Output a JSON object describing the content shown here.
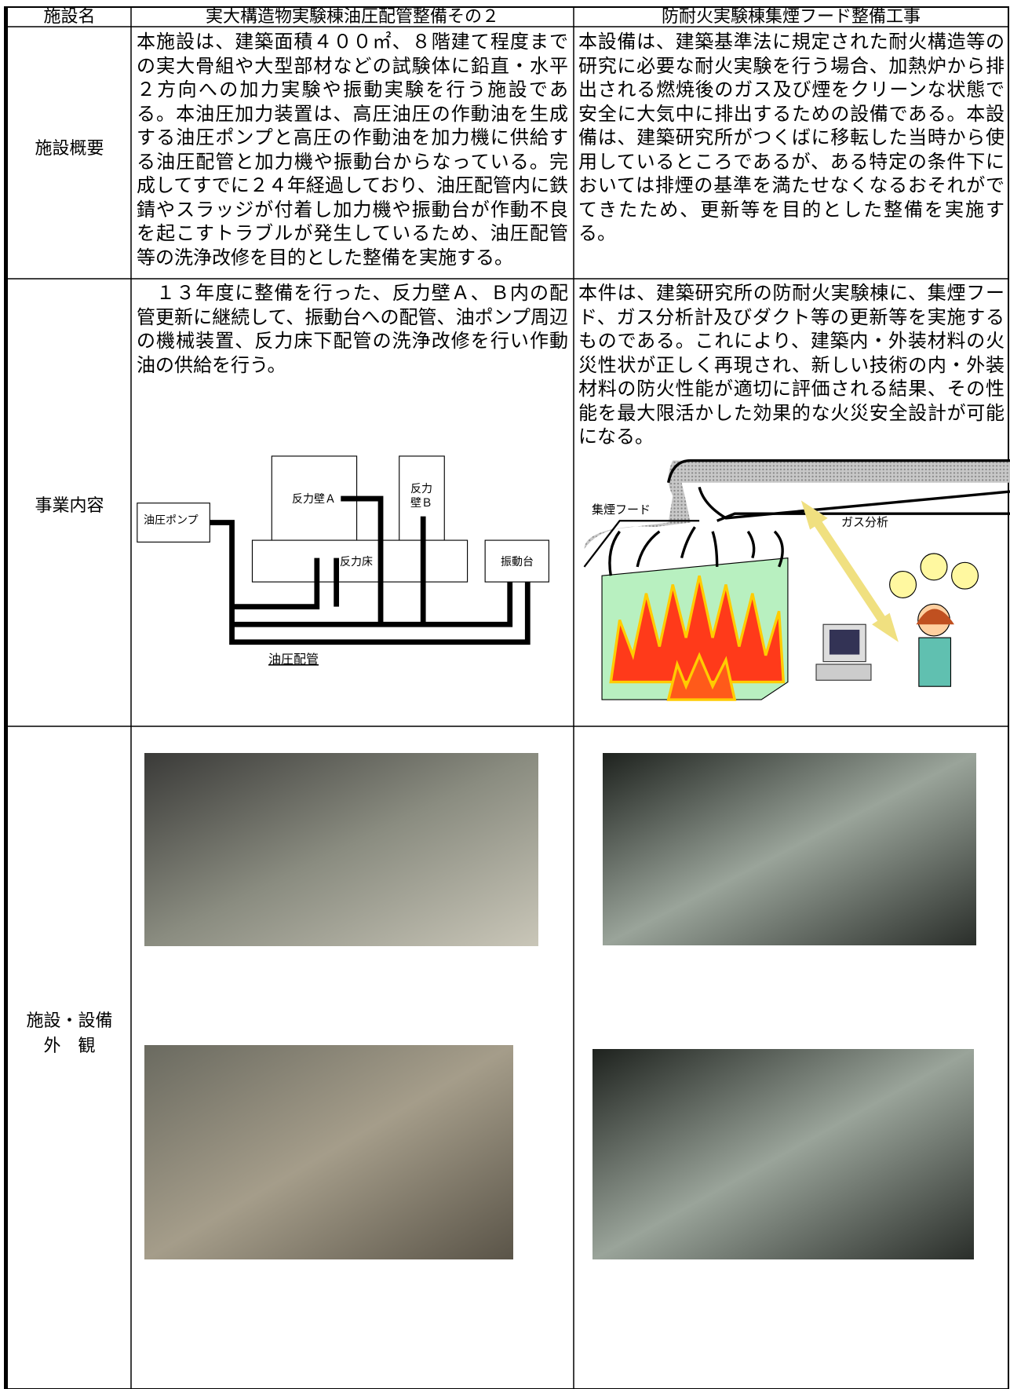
{
  "table": {
    "header": [
      "施設名",
      "実大構造物実験棟油圧配管整備その２",
      "防耐火実験棟集煙フード整備工事"
    ],
    "rows": [
      {
        "label": [
          "施設概要"
        ],
        "cells": [
          "本施設は、建築面積４００㎡、８階建て程度までの実大骨組や大型部材などの試験体に鉛直・水平２方向への加力実験や振動実験を行う施設である。本油圧加力装置は、高圧油圧の作動油を生成する油圧ポンプと高圧の作動油を加力機に供給する油圧配管と加力機や振動台からなっている。完成してすでに２４年経過しており、油圧配管内に鉄錆やスラッジが付着し加力機や振動台が作動不良を起こすトラブルが発生しているため、油圧配管等の洗浄改修を目的とした整備を実施する。",
          "本設備は、建築基準法に規定された耐火構造等の研究に必要な耐火実験を行う場合、加熱炉から排出される燃焼後のガス及び煙をクリーンな状態で安全に大気中に排出するための設備である。本設備は、建築研究所がつくばに移転した当時から使用しているところであるが、ある特定の条件下においては排煙の基準を満たせなくなるおそれがでてきたため、更新等を目的とした整備を実施する。"
        ]
      },
      {
        "label": [
          "事業内容"
        ],
        "cells": [
          "　１３年度に整備を行った、反力壁Ａ、Ｂ内の配管更新に継続して、振動台への配管、油ポンプ周辺の機械装置、反力床下配管の洗浄改修を行い作動油の供給を行う。",
          "本件は、建築研究所の防耐火実験棟に、集煙フード、ガス分析計及びダクト等の更新等を実施するものである。これにより、建築内・外装材料の火災性状が正しく再現され、新しい技術の内・外装材料の防火性能が適切に評価される結果、その性能を最大限活かした効果的な火災安全設計が可能になる。"
        ]
      },
      {
        "label": [
          "施設・設備",
          "外　観"
        ],
        "cells": []
      }
    ]
  },
  "diagram_left": {
    "pump": "油圧ポンプ",
    "wall_a": "反力壁Ａ",
    "wall_b": [
      "反力",
      "壁Ｂ"
    ],
    "floor": "反力床",
    "shaker": "振動台",
    "piping": "油圧配管"
  },
  "diagram_right": {
    "hood": "集煙フード",
    "gas": "ガス分析"
  }
}
